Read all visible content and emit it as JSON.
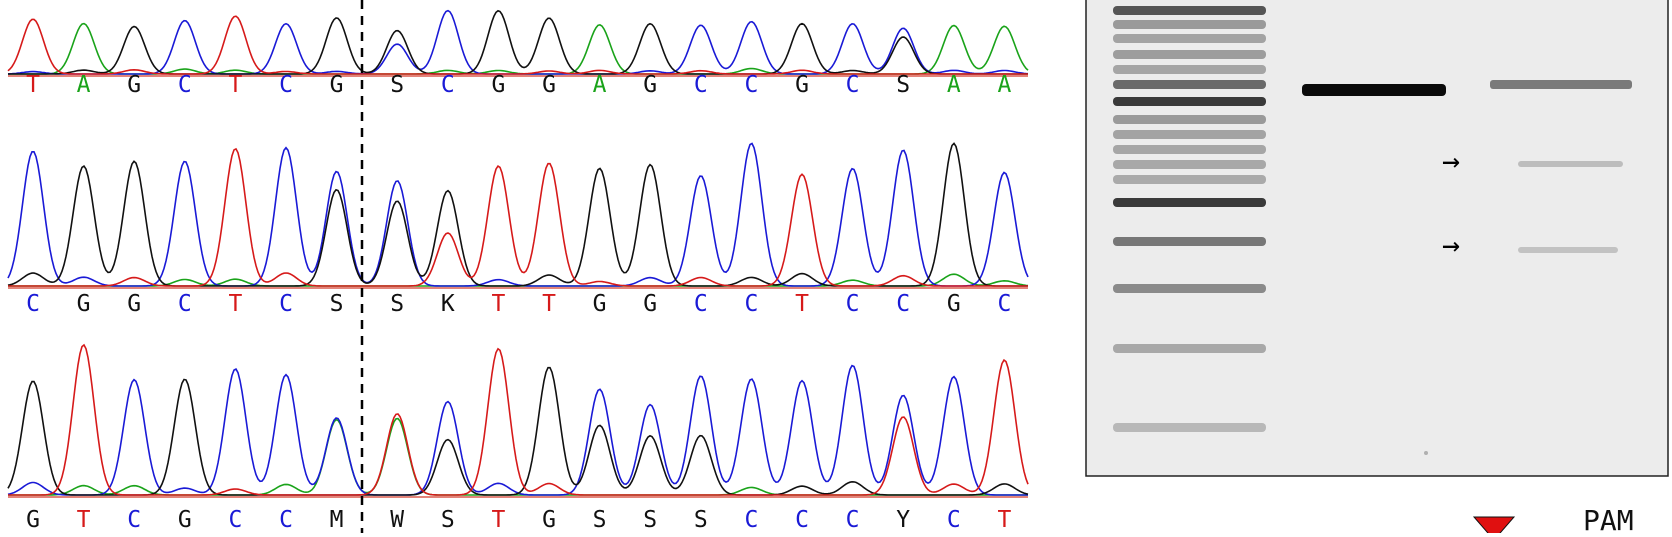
{
  "colors": {
    "A": "#1aa31a",
    "C": "#1a1ad6",
    "G": "#111111",
    "T": "#d61a1a",
    "ambiguous": "#111111",
    "gel_background": "#ededed",
    "marker_red": "#e01010"
  },
  "sequencing": {
    "rows": [
      {
        "name": "row-1",
        "bases": [
          "T",
          "A",
          "G",
          "C",
          "T",
          "C",
          "G",
          "S",
          "C",
          "G",
          "G",
          "A",
          "G",
          "C",
          "C",
          "G",
          "C",
          "S",
          "A",
          "A"
        ],
        "cut_after_index": 6
      },
      {
        "name": "row-2",
        "bases": [
          "C",
          "G",
          "G",
          "C",
          "T",
          "C",
          "S",
          "S",
          "K",
          "T",
          "T",
          "G",
          "G",
          "C",
          "C",
          "T",
          "C",
          "C",
          "G",
          "C"
        ],
        "cut_after_index": 6
      },
      {
        "name": "row-3",
        "bases": [
          "G",
          "T",
          "C",
          "G",
          "C",
          "C",
          "M",
          "W",
          "S",
          "T",
          "G",
          "S",
          "S",
          "S",
          "C",
          "C",
          "C",
          "Y",
          "C",
          "T"
        ],
        "cut_after_index": 6
      }
    ]
  },
  "gel": {
    "arrow_glyph": "→",
    "arrow_count": 2
  },
  "legend": {
    "pam_label": "PAM",
    "marker_icon": "red-triangle-marker-icon"
  }
}
